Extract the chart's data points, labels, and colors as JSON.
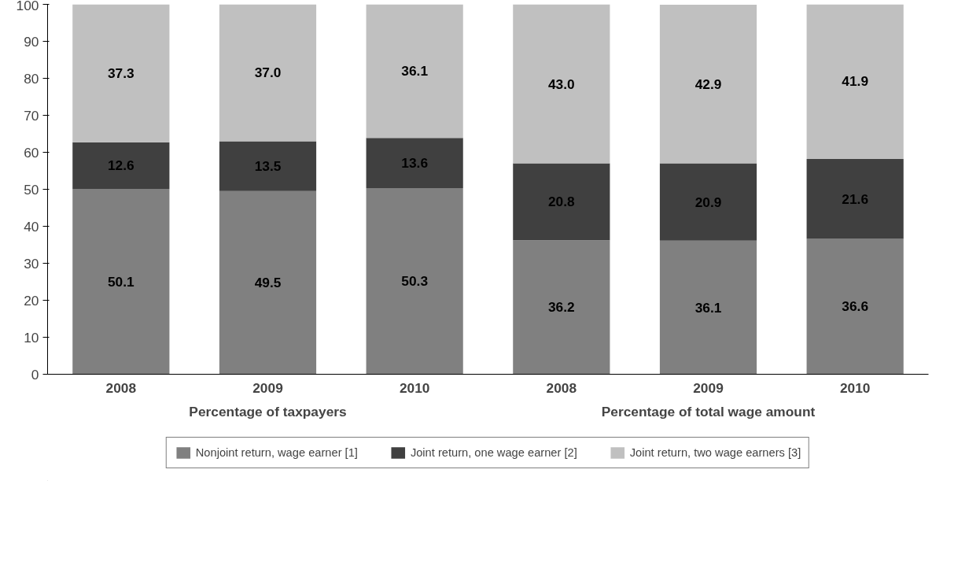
{
  "chart_data": {
    "type": "bar",
    "stacked": true,
    "data_labels": true,
    "legend": "bottom",
    "grid": false,
    "categories": [
      "2008",
      "2009",
      "2010",
      "2008",
      "2009",
      "2010"
    ],
    "annotations": [
      "Percentage of taxpayers",
      "Percentage of total wage amount"
    ],
    "ylim": [
      0,
      100
    ],
    "yticks": [
      0,
      10,
      20,
      30,
      40,
      50,
      60,
      70,
      80,
      90,
      100
    ],
    "series": [
      {
        "name": "Nonjoint return, wage earner [1]",
        "color": "#808080",
        "values": [
          50.1,
          49.5,
          50.3,
          36.2,
          36.1,
          36.6
        ]
      },
      {
        "name": "Joint return, one wage earner [2]",
        "color": "#404040",
        "values": [
          12.6,
          13.5,
          13.6,
          20.8,
          20.9,
          21.6
        ]
      },
      {
        "name": "Joint return, two wage earners [3]",
        "color": "#c0c0c0",
        "values": [
          37.3,
          37.0,
          36.1,
          43.0,
          42.9,
          41.9
        ],
        "value_labels": [
          "37.3",
          "37.0",
          "36.1",
          "43.0",
          "42.9",
          "41.9"
        ]
      }
    ]
  }
}
